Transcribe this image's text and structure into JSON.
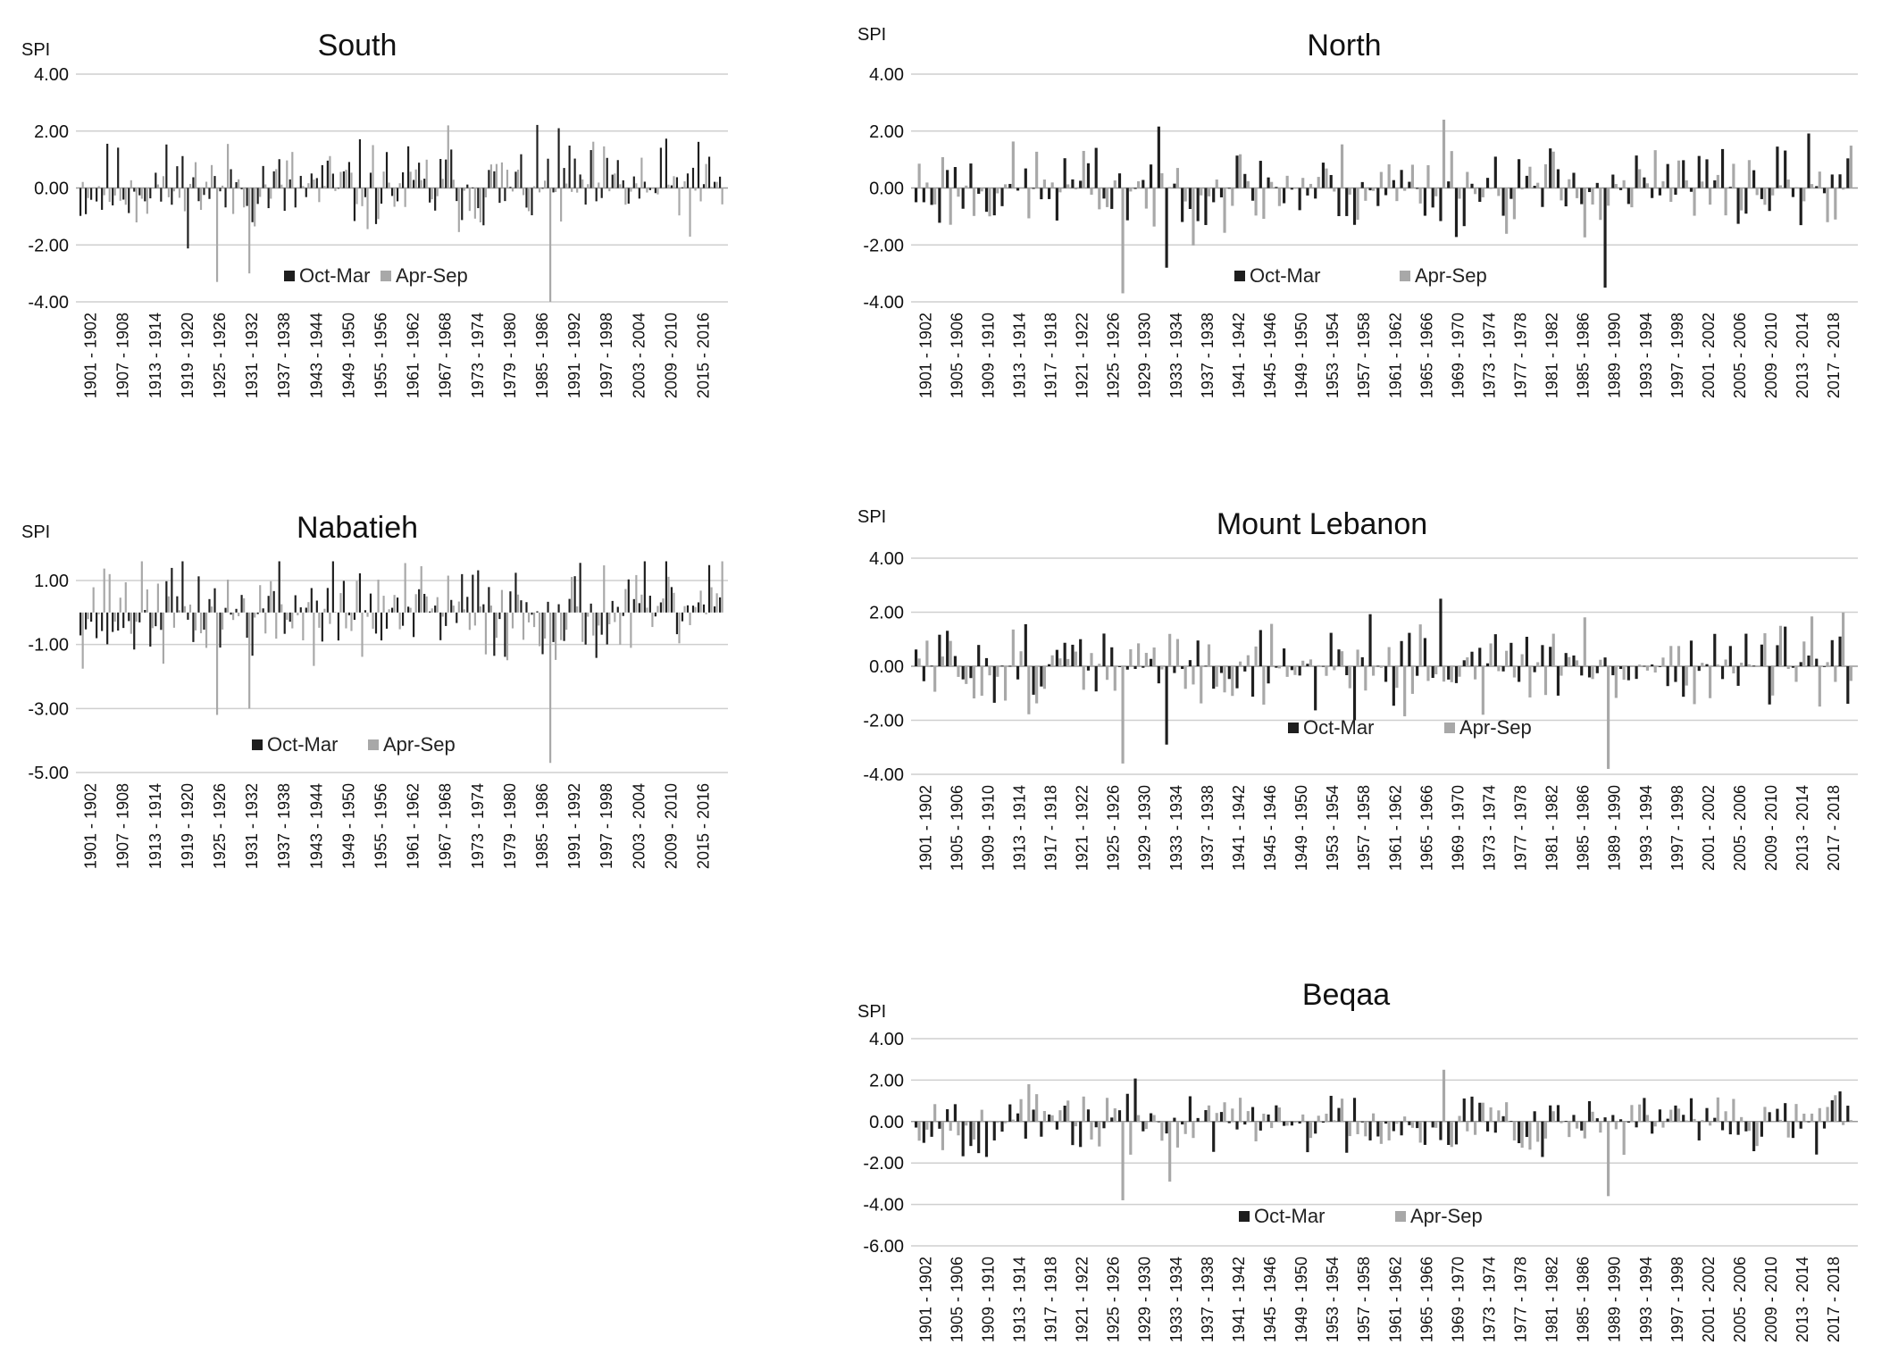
{
  "colors": {
    "oct_mar": "#1e1e1e",
    "apr_sep": "#a8a8a8",
    "grid": "#cfcfcf",
    "background": "#ffffff"
  },
  "chart_data": [
    {
      "type": "bar",
      "title": "South",
      "ylabel": "SPI",
      "ylim": [
        -4,
        4
      ],
      "yticks": [
        "4.00",
        "2.00",
        "0.00",
        "-2.00",
        "-4.00"
      ],
      "xticks": [
        "1901 - 1902",
        "1907 - 1908",
        "1913 - 1914",
        "1919 - 1920",
        "1925 - 1926",
        "1931 - 1932",
        "1937 - 1938",
        "1943 - 1944",
        "1949 - 1950",
        "1955 - 1956",
        "1961 - 1962",
        "1967 - 1968",
        "1973 - 1974",
        "1979 - 1980",
        "1985 - 1986",
        "1991 - 1992",
        "1997 - 1998",
        "2003 - 2004",
        "2009 - 2010",
        "2015 - 2016"
      ],
      "legend_position": "bottom",
      "series": [
        {
          "name": "Oct-Mar"
        },
        {
          "name": "Apr-Sep"
        }
      ],
      "notable_values": [
        {
          "period": "1926 - 1927",
          "series": "Apr-Sep",
          "value": -3.3
        },
        {
          "period": "1932 - 1933",
          "series": "Apr-Sep",
          "value": -3.0
        },
        {
          "period": "1988 - 1989",
          "series": "Apr-Sep",
          "value": -4.0
        },
        {
          "period": "1990 - 1991",
          "series": "Oct-Mar",
          "value": 2.1
        },
        {
          "period": "1969 - 1970",
          "series": "Apr-Sep",
          "value": 2.2
        }
      ]
    },
    {
      "type": "bar",
      "title": "North",
      "ylabel": "SPI",
      "ylim": [
        -4,
        4
      ],
      "yticks": [
        "4.00",
        "2.00",
        "0.00",
        "-2.00",
        "-4.00"
      ],
      "xticks": [
        "1901 - 1902",
        "1905 - 1906",
        "1909 - 1910",
        "1913 - 1914",
        "1917 - 1918",
        "1921 - 1922",
        "1925 - 1926",
        "1929 - 1930",
        "1933 - 1934",
        "1937 - 1938",
        "1941 - 1942",
        "1945 - 1946",
        "1949 - 1950",
        "1953 - 1954",
        "1957 - 1958",
        "1961 - 1962",
        "1965 - 1966",
        "1969 - 1970",
        "1973 - 1974",
        "1977 - 1978",
        "1981 - 1982",
        "1985 - 1986",
        "1989 - 1990",
        "1993 - 1994",
        "1997 - 1998",
        "2001 - 2002",
        "2005 - 2006",
        "2009 - 2010",
        "2013 - 2014",
        "2017 - 2018"
      ],
      "legend_position": "bottom",
      "series": [
        {
          "name": "Oct-Mar"
        },
        {
          "name": "Apr-Sep"
        }
      ],
      "notable_values": [
        {
          "period": "1927 - 1928",
          "series": "Apr-Sep",
          "value": -3.7
        },
        {
          "period": "1933 - 1934",
          "series": "Oct-Mar",
          "value": -2.8
        },
        {
          "period": "1989 - 1990",
          "series": "Oct-Mar",
          "value": -3.5
        },
        {
          "period": "1968 - 1969",
          "series": "Apr-Sep",
          "value": 2.4
        }
      ]
    },
    {
      "type": "bar",
      "title": "Nabatieh",
      "ylabel": "SPI",
      "ylim": [
        -5,
        1.9
      ],
      "yticks": [
        "1.00",
        "-1.00",
        "-3.00",
        "-5.00"
      ],
      "xticks": [
        "1901 - 1902",
        "1907 - 1908",
        "1913 - 1914",
        "1919 - 1920",
        "1925 - 1926",
        "1931 - 1932",
        "1937 - 1938",
        "1943 - 1944",
        "1949 - 1950",
        "1955 - 1956",
        "1961 - 1962",
        "1967 - 1968",
        "1973 - 1974",
        "1979 - 1980",
        "1985 - 1986",
        "1991 - 1992",
        "1997 - 1998",
        "2003 - 2004",
        "2009 - 2010",
        "2015 - 2016"
      ],
      "legend_position": "bottom",
      "series": [
        {
          "name": "Oct-Mar"
        },
        {
          "name": "Apr-Sep"
        }
      ],
      "notable_values": [
        {
          "period": "1926 - 1927",
          "series": "Apr-Sep",
          "value": -3.2
        },
        {
          "period": "1932 - 1933",
          "series": "Apr-Sep",
          "value": -3.0
        },
        {
          "period": "1988 - 1989",
          "series": "Apr-Sep",
          "value": -4.7
        }
      ]
    },
    {
      "type": "bar",
      "title": "Mount Lebanon",
      "ylabel": "SPI",
      "ylim": [
        -4,
        4
      ],
      "yticks": [
        "4.00",
        "2.00",
        "0.00",
        "-2.00",
        "-4.00"
      ],
      "xticks": [
        "1901 - 1902",
        "1905 - 1906",
        "1909 - 1910",
        "1913 - 1914",
        "1917 - 1918",
        "1921 - 1922",
        "1925 - 1926",
        "1929 - 1930",
        "1933 - 1934",
        "1937 - 1938",
        "1941 - 1942",
        "1945 - 1946",
        "1949 - 1950",
        "1953 - 1954",
        "1957 - 1958",
        "1961 - 1962",
        "1965 - 1966",
        "1969 - 1970",
        "1973 - 1974",
        "1977 - 1978",
        "1981 - 1982",
        "1985 - 1986",
        "1989 - 1990",
        "1993 - 1994",
        "1997 - 1998",
        "2001 - 2002",
        "2005 - 2006",
        "2009 - 2010",
        "2013 - 2014",
        "2017 - 2018"
      ],
      "legend_position": "bottom",
      "series": [
        {
          "name": "Oct-Mar"
        },
        {
          "name": "Apr-Sep"
        }
      ],
      "notable_values": [
        {
          "period": "1927 - 1928",
          "series": "Apr-Sep",
          "value": -3.6
        },
        {
          "period": "1933 - 1934",
          "series": "Oct-Mar",
          "value": -2.9
        },
        {
          "period": "1989 - 1990",
          "series": "Apr-Sep",
          "value": -3.8
        },
        {
          "period": "1968 - 1969",
          "series": "Oct-Mar",
          "value": 2.5
        }
      ]
    },
    {
      "type": "bar",
      "title": "Beqaa",
      "ylabel": "SPI",
      "ylim": [
        -6,
        4
      ],
      "yticks": [
        "4.00",
        "2.00",
        "0.00",
        "-2.00",
        "-4.00",
        "-6.00"
      ],
      "xticks": [
        "1901 - 1902",
        "1905 - 1906",
        "1909 - 1910",
        "1913 - 1914",
        "1917 - 1918",
        "1921 - 1922",
        "1925 - 1926",
        "1929 - 1930",
        "1933 - 1934",
        "1937 - 1938",
        "1941 - 1942",
        "1945 - 1946",
        "1949 - 1950",
        "1953 - 1954",
        "1957 - 1958",
        "1961 - 1962",
        "1965 - 1966",
        "1969 - 1970",
        "1973 - 1974",
        "1977 - 1978",
        "1981 - 1982",
        "1985 - 1986",
        "1989 - 1990",
        "1993 - 1994",
        "1997 - 1998",
        "2001 - 2002",
        "2005 - 2006",
        "2009 - 2010",
        "2013 - 2014",
        "2017 - 2018"
      ],
      "legend_position": "bottom",
      "series": [
        {
          "name": "Oct-Mar"
        },
        {
          "name": "Apr-Sep"
        }
      ],
      "notable_values": [
        {
          "period": "1927 - 1928",
          "series": "Apr-Sep",
          "value": -3.8
        },
        {
          "period": "1933 - 1934",
          "series": "Apr-Sep",
          "value": -2.9
        },
        {
          "period": "1989 - 1990",
          "series": "Apr-Sep",
          "value": -3.6
        },
        {
          "period": "1968 - 1969",
          "series": "Apr-Sep",
          "value": 2.5
        }
      ]
    }
  ]
}
